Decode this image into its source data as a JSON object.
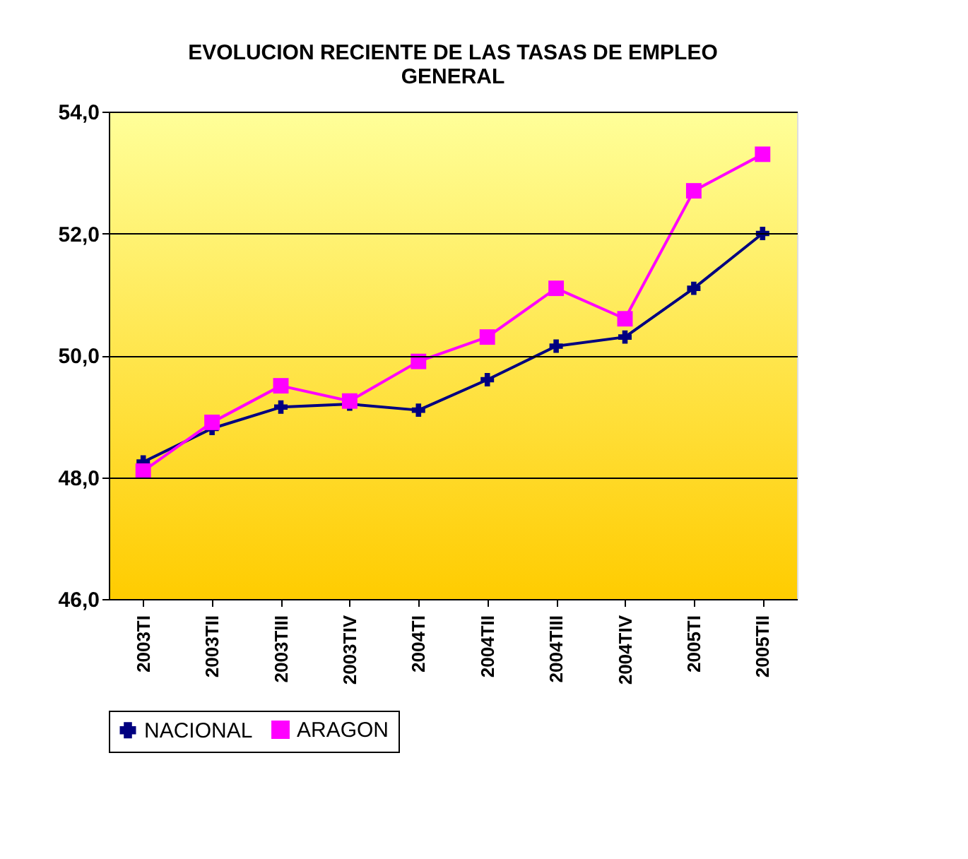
{
  "chart_data": {
    "type": "line",
    "title": [
      "EVOLUCION RECIENTE DE LAS TASAS DE EMPLEO",
      "GENERAL"
    ],
    "categories": [
      "2003TI",
      "2003TII",
      "2003TIII",
      "2003TIV",
      "2004TI",
      "2004TII",
      "2004TIII",
      "2004TIV",
      "2005TI",
      "2005TII"
    ],
    "series": [
      {
        "name": "NACIONAL",
        "color": "#000080",
        "marker": "cross",
        "values": [
          48.25,
          48.8,
          49.15,
          49.2,
          49.1,
          49.6,
          50.15,
          50.3,
          51.1,
          52.0
        ]
      },
      {
        "name": "ARAGON",
        "color": "#ff00ff",
        "marker": "square",
        "values": [
          48.1,
          48.9,
          49.5,
          49.25,
          49.9,
          50.3,
          51.1,
          50.6,
          52.7,
          53.3
        ]
      }
    ],
    "ylim": [
      46,
      54
    ],
    "yticks": [
      {
        "value": 46,
        "label": "46,0"
      },
      {
        "value": 48,
        "label": "48,0"
      },
      {
        "value": 50,
        "label": "50,0"
      },
      {
        "value": 52,
        "label": "52,0"
      },
      {
        "value": 54,
        "label": "54,0"
      }
    ],
    "grid": "y",
    "legend": "bottom"
  }
}
